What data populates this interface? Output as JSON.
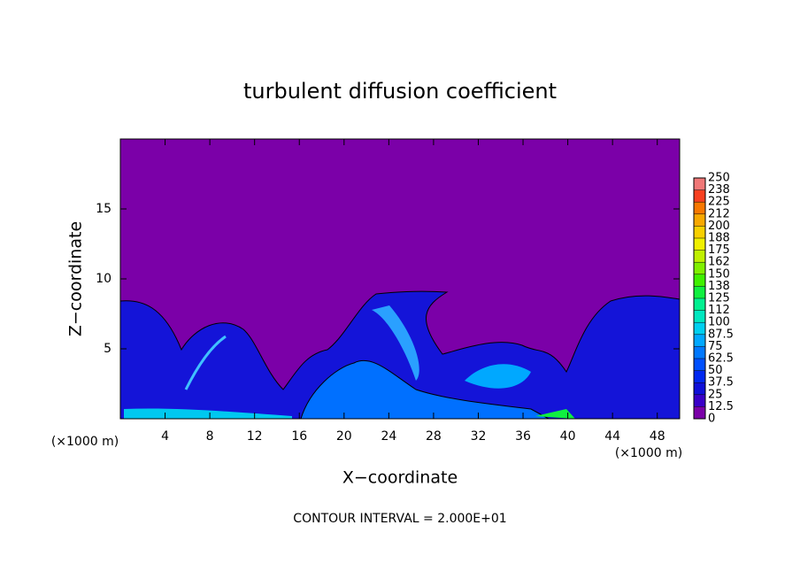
{
  "chart_data": {
    "type": "contour",
    "title": "turbulent diffusion coefficient",
    "xlabel": "X−coordinate",
    "ylabel": "Z−coordinate",
    "x_unit_left": "(×1000 m)",
    "x_unit_right": "(×1000 m)",
    "note": "CONTOUR INTERVAL = 2.000E+01",
    "xlim": [
      0,
      50
    ],
    "xticks": [
      4,
      8,
      12,
      16,
      20,
      24,
      28,
      32,
      36,
      40,
      44,
      48
    ],
    "ylim": [
      0,
      20
    ],
    "yticks": [
      5,
      10,
      15
    ],
    "colorbar": {
      "ticks": [
        0,
        12.5,
        25,
        37.5,
        50,
        62.5,
        75,
        87.5,
        100,
        {
          "value": 112.5,
          "label": "112"
        },
        125,
        {
          "value": 137.5,
          "label": "138"
        },
        150,
        {
          "value": 162.5,
          "label": "162"
        },
        175,
        {
          "value": 187.5,
          "label": "188"
        },
        200,
        {
          "value": 212.5,
          "label": "212"
        },
        225,
        {
          "value": 237.5,
          "label": "238"
        },
        250
      ],
      "colors": [
        "#7b00a8",
        "#3a00c8",
        "#1010d8",
        "#0028f0",
        "#0050ff",
        "#0078ff",
        "#00a8ff",
        "#00d0f0",
        "#00e8c0",
        "#00f090",
        "#10f040",
        "#40f000",
        "#80f000",
        "#c0f000",
        "#f0f000",
        "#f8d000",
        "#f8a800",
        "#f87800",
        "#f84020",
        "#f07878"
      ]
    }
  }
}
